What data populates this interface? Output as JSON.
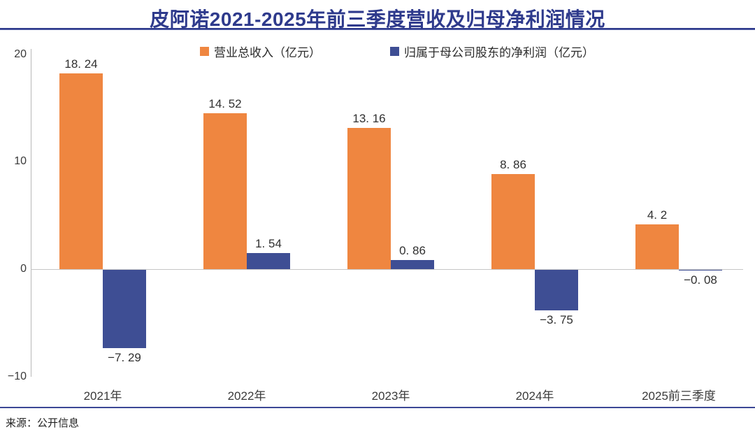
{
  "title": "皮阿诺2021-2025年前三季度营收及归母净利润情况",
  "source": "来源：公开信息",
  "colors": {
    "revenue_orange": "#EF8640",
    "profit_blue": "#3E4E94",
    "title_navy": "#2E3A8C",
    "axis_gray": "#c6c6c6"
  },
  "legend": [
    {
      "label": "营业总收入（亿元）",
      "color": "#EF8640"
    },
    {
      "label": "归属于母公司股东的净利润（亿元）",
      "color": "#3E4E94"
    }
  ],
  "chart_data": {
    "type": "bar",
    "title": "皮阿诺2021-2025年前三季度营收及归母净利润情况",
    "categories": [
      "2021年",
      "2022年",
      "2023年",
      "2024年",
      "2025前三季度"
    ],
    "series": [
      {
        "name": "营业总收入（亿元）",
        "color": "#EF8640",
        "values": [
          18.24,
          14.52,
          13.16,
          8.86,
          4.2
        ],
        "labels": [
          "18. 24",
          "14. 52",
          "13. 16",
          "8. 86",
          "4. 2"
        ]
      },
      {
        "name": "归属于母公司股东的净利润（亿元）",
        "color": "#3E4E94",
        "values": [
          -7.29,
          1.54,
          0.86,
          -3.75,
          -0.08
        ],
        "labels": [
          "−7. 29",
          "1. 54",
          "0. 86",
          "−3. 75",
          "−0. 08"
        ]
      }
    ],
    "yticks": [
      {
        "value": 20,
        "label": "20"
      },
      {
        "value": 10,
        "label": "10"
      },
      {
        "value": 0,
        "label": "0"
      },
      {
        "value": -10,
        "label": "−10"
      }
    ],
    "ylim": [
      -10,
      20.5
    ],
    "grid": false,
    "legend_position": "top",
    "xlabel": "",
    "ylabel": ""
  }
}
